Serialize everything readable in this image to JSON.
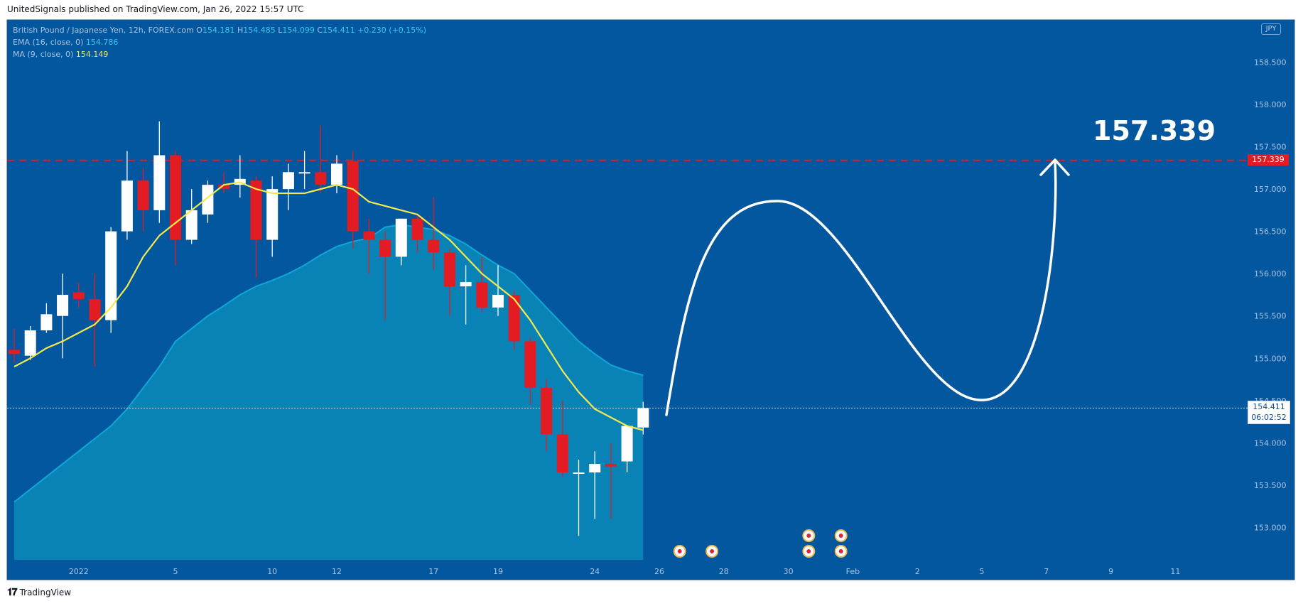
{
  "header": {
    "published": "UnitedSignals published on TradingView.com, Jan 26, 2022 15:57 UTC"
  },
  "legend": {
    "symbol": "British Pound / Japanese Yen, 12h, FOREX.com",
    "o_label": "O",
    "o": "154.181",
    "h_label": "H",
    "h": "154.485",
    "l_label": "L",
    "l": "154.099",
    "c_label": "C",
    "c": "154.411",
    "change": "+0.230 (+0.15%)",
    "ema_label": "EMA (16, close, 0)",
    "ema_value": "154.786",
    "ma_label": "MA (9, close, 0)",
    "ma_value": "154.149"
  },
  "currency": "JPY",
  "target_label": "157.339",
  "price_tags": {
    "target": "157.339",
    "last": "154.411",
    "countdown": "06:02:52"
  },
  "footer": {
    "brand": "TradingView"
  },
  "colors": {
    "background": "#03579e",
    "cloud": "#0a86b7",
    "ema_line": "#0fa6d8",
    "ma_line": "#f2ea4e",
    "bull": "#ffffff",
    "bear": "#e31c24",
    "target_line": "#e31c24",
    "drawing": "#ffffff"
  },
  "chart_data": {
    "type": "candlestick",
    "timeframe": "12h",
    "ylim": [
      152.6,
      159.0
    ],
    "y_ticks": [
      "153.000",
      "153.500",
      "154.000",
      "154.500",
      "155.000",
      "155.500",
      "156.000",
      "156.500",
      "157.000",
      "157.500",
      "158.000",
      "158.500"
    ],
    "x_ticks": [
      {
        "label": "2022",
        "bar": 4
      },
      {
        "label": "5",
        "bar": 10
      },
      {
        "label": "10",
        "bar": 16
      },
      {
        "label": "12",
        "bar": 20
      },
      {
        "label": "17",
        "bar": 26
      },
      {
        "label": "19",
        "bar": 30
      },
      {
        "label": "24",
        "bar": 36
      },
      {
        "label": "26",
        "bar": 40
      },
      {
        "label": "28",
        "bar": 44
      },
      {
        "label": "30",
        "bar": 48
      },
      {
        "label": "Feb",
        "bar": 52
      },
      {
        "label": "2",
        "bar": 56
      },
      {
        "label": "5",
        "bar": 60
      },
      {
        "label": "7",
        "bar": 64
      },
      {
        "label": "9",
        "bar": 68
      },
      {
        "label": "11",
        "bar": 72
      }
    ],
    "candles": [
      {
        "o": 155.1,
        "h": 155.35,
        "l": 154.95,
        "c": 155.05
      },
      {
        "o": 155.03,
        "h": 155.38,
        "l": 154.98,
        "c": 155.33
      },
      {
        "o": 155.33,
        "h": 155.65,
        "l": 155.3,
        "c": 155.52
      },
      {
        "o": 155.5,
        "h": 156.0,
        "l": 155.0,
        "c": 155.75
      },
      {
        "o": 155.78,
        "h": 155.9,
        "l": 155.6,
        "c": 155.7
      },
      {
        "o": 155.7,
        "h": 156.0,
        "l": 154.9,
        "c": 155.45
      },
      {
        "o": 155.45,
        "h": 156.55,
        "l": 155.3,
        "c": 156.5
      },
      {
        "o": 156.5,
        "h": 157.45,
        "l": 156.4,
        "c": 157.1
      },
      {
        "o": 157.1,
        "h": 157.25,
        "l": 156.5,
        "c": 156.75
      },
      {
        "o": 156.75,
        "h": 157.8,
        "l": 156.6,
        "c": 157.4
      },
      {
        "o": 157.4,
        "h": 157.45,
        "l": 156.1,
        "c": 156.4
      },
      {
        "o": 156.4,
        "h": 157.0,
        "l": 156.35,
        "c": 156.75
      },
      {
        "o": 156.7,
        "h": 157.1,
        "l": 156.6,
        "c": 157.05
      },
      {
        "o": 157.05,
        "h": 157.2,
        "l": 156.95,
        "c": 157.0
      },
      {
        "o": 157.05,
        "h": 157.4,
        "l": 156.9,
        "c": 157.12
      },
      {
        "o": 157.1,
        "h": 157.15,
        "l": 155.95,
        "c": 156.4
      },
      {
        "o": 156.4,
        "h": 157.15,
        "l": 156.2,
        "c": 157.0
      },
      {
        "o": 157.0,
        "h": 157.3,
        "l": 156.75,
        "c": 157.2
      },
      {
        "o": 157.2,
        "h": 157.45,
        "l": 157.0,
        "c": 157.2
      },
      {
        "o": 157.2,
        "h": 157.75,
        "l": 156.95,
        "c": 157.05
      },
      {
        "o": 157.05,
        "h": 157.4,
        "l": 156.95,
        "c": 157.3
      },
      {
        "o": 157.33,
        "h": 157.45,
        "l": 156.3,
        "c": 156.5
      },
      {
        "o": 156.5,
        "h": 156.65,
        "l": 156.0,
        "c": 156.4
      },
      {
        "o": 156.4,
        "h": 156.5,
        "l": 155.45,
        "c": 156.2
      },
      {
        "o": 156.2,
        "h": 156.65,
        "l": 156.1,
        "c": 156.65
      },
      {
        "o": 156.65,
        "h": 156.7,
        "l": 156.25,
        "c": 156.4
      },
      {
        "o": 156.4,
        "h": 156.9,
        "l": 156.05,
        "c": 156.25
      },
      {
        "o": 156.25,
        "h": 156.3,
        "l": 155.5,
        "c": 155.85
      },
      {
        "o": 155.85,
        "h": 156.1,
        "l": 155.4,
        "c": 155.9
      },
      {
        "o": 155.9,
        "h": 156.2,
        "l": 155.55,
        "c": 155.6
      },
      {
        "o": 155.6,
        "h": 156.1,
        "l": 155.5,
        "c": 155.75
      },
      {
        "o": 155.75,
        "h": 155.8,
        "l": 155.1,
        "c": 155.2
      },
      {
        "o": 155.2,
        "h": 155.25,
        "l": 154.45,
        "c": 154.65
      },
      {
        "o": 154.65,
        "h": 154.75,
        "l": 153.9,
        "c": 154.1
      },
      {
        "o": 154.1,
        "h": 154.5,
        "l": 153.6,
        "c": 153.65
      },
      {
        "o": 153.65,
        "h": 153.8,
        "l": 152.9,
        "c": 153.65
      },
      {
        "o": 153.65,
        "h": 153.9,
        "l": 153.1,
        "c": 153.75
      },
      {
        "o": 153.75,
        "h": 154.0,
        "l": 153.1,
        "c": 153.72
      },
      {
        "o": 153.78,
        "h": 154.2,
        "l": 153.65,
        "c": 154.2
      },
      {
        "o": 154.181,
        "h": 154.485,
        "l": 154.099,
        "c": 154.411
      }
    ],
    "ema16": [
      153.3,
      153.45,
      153.6,
      153.75,
      153.9,
      154.05,
      154.2,
      154.4,
      154.65,
      154.9,
      155.2,
      155.35,
      155.5,
      155.62,
      155.75,
      155.85,
      155.92,
      156.0,
      156.1,
      156.22,
      156.32,
      156.38,
      156.42,
      156.55,
      156.58,
      156.55,
      156.52,
      156.45,
      156.35,
      156.22,
      156.1,
      156.0,
      155.8,
      155.6,
      155.4,
      155.2,
      155.05,
      154.92,
      154.85,
      154.8
    ],
    "ma9": [
      154.9,
      155.0,
      155.12,
      155.2,
      155.3,
      155.4,
      155.6,
      155.85,
      156.2,
      156.45,
      156.6,
      156.75,
      156.9,
      157.05,
      157.08,
      157.0,
      156.95,
      156.95,
      156.95,
      157.0,
      157.05,
      157.0,
      156.85,
      156.8,
      156.75,
      156.7,
      156.55,
      156.4,
      156.2,
      156.0,
      155.85,
      155.7,
      155.45,
      155.15,
      154.85,
      154.6,
      154.4,
      154.3,
      154.2,
      154.15
    ],
    "target_level": 157.339,
    "last_price": 154.411
  }
}
